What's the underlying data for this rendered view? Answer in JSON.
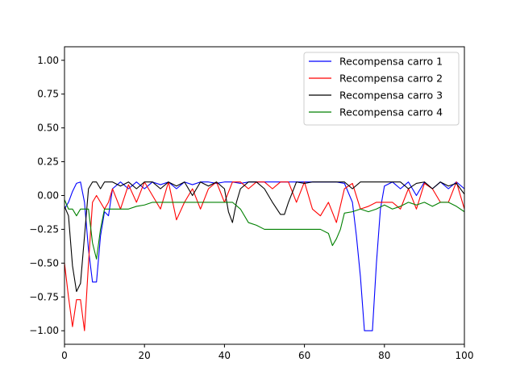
{
  "chart_data": {
    "type": "line",
    "xlim": [
      0,
      100
    ],
    "ylim": [
      -1.1,
      1.1
    ],
    "xticks": [
      0,
      20,
      40,
      60,
      80,
      100
    ],
    "xtick_labels": [
      "0",
      "20",
      "40",
      "60",
      "80",
      "100"
    ],
    "yticks": [
      -1.0,
      -0.75,
      -0.5,
      -0.25,
      0.0,
      0.25,
      0.5,
      0.75,
      1.0
    ],
    "ytick_labels": [
      "−1.00",
      "−0.75",
      "−0.50",
      "−0.25",
      "0.00",
      "0.25",
      "0.50",
      "0.75",
      "1.00"
    ],
    "grid": false,
    "legend_position": "top-right",
    "series": [
      {
        "name": "Recompensa carro 1",
        "color": "#0000ff",
        "x": [
          0,
          1,
          2,
          3,
          4,
          5,
          6,
          7,
          8,
          9,
          10,
          11,
          12,
          14,
          16,
          18,
          20,
          22,
          24,
          26,
          28,
          30,
          32,
          34,
          36,
          38,
          40,
          42,
          44,
          46,
          48,
          50,
          52,
          54,
          56,
          58,
          60,
          62,
          64,
          66,
          68,
          70,
          72,
          73,
          74,
          75,
          76,
          77,
          78,
          79,
          80,
          82,
          84,
          86,
          88,
          90,
          92,
          94,
          96,
          98,
          100
        ],
        "y": [
          -0.1,
          -0.05,
          0.03,
          0.09,
          0.1,
          -0.05,
          -0.4,
          -0.64,
          -0.64,
          -0.3,
          -0.12,
          -0.15,
          0.05,
          0.1,
          0.05,
          0.1,
          0.05,
          0.1,
          0.08,
          0.1,
          0.05,
          0.1,
          0.08,
          0.1,
          0.1,
          0.09,
          0.1,
          0.1,
          0.09,
          0.1,
          0.1,
          0.1,
          0.1,
          0.1,
          0.1,
          0.1,
          0.1,
          0.1,
          0.1,
          0.1,
          0.1,
          0.09,
          -0.05,
          -0.3,
          -0.6,
          -1.0,
          -1.0,
          -1.0,
          -0.5,
          -0.1,
          0.07,
          0.1,
          0.05,
          0.1,
          0.0,
          0.1,
          0.05,
          0.1,
          0.05,
          0.1,
          0.05
        ]
      },
      {
        "name": "Recompensa carro 2",
        "color": "#ff0000",
        "x": [
          0,
          1,
          2,
          3,
          4,
          5,
          6,
          7,
          8,
          9,
          10,
          11,
          12,
          14,
          16,
          18,
          20,
          22,
          24,
          26,
          28,
          30,
          32,
          34,
          36,
          38,
          40,
          42,
          44,
          46,
          48,
          50,
          52,
          54,
          56,
          58,
          60,
          62,
          64,
          66,
          68,
          70,
          72,
          74,
          76,
          78,
          80,
          82,
          84,
          86,
          88,
          90,
          92,
          94,
          96,
          98,
          100
        ],
        "y": [
          -0.5,
          -0.75,
          -0.97,
          -0.77,
          -0.77,
          -1.0,
          -0.5,
          -0.05,
          0.0,
          -0.05,
          -0.1,
          -0.05,
          0.05,
          -0.1,
          0.08,
          -0.05,
          0.1,
          0.0,
          -0.1,
          0.1,
          -0.18,
          -0.05,
          0.05,
          -0.1,
          0.05,
          0.1,
          -0.05,
          0.1,
          0.1,
          0.05,
          0.1,
          0.1,
          0.05,
          0.1,
          0.1,
          -0.05,
          0.1,
          -0.1,
          -0.15,
          -0.05,
          -0.2,
          0.05,
          0.09,
          -0.1,
          -0.08,
          -0.05,
          -0.05,
          -0.05,
          -0.1,
          0.05,
          -0.1,
          0.09,
          0.05,
          -0.05,
          -0.05,
          0.1,
          -0.1
        ]
      },
      {
        "name": "Recompensa carro 3",
        "color": "#000000",
        "x": [
          0,
          1,
          2,
          3,
          4,
          5,
          6,
          7,
          8,
          9,
          10,
          11,
          12,
          14,
          16,
          18,
          20,
          22,
          24,
          26,
          28,
          30,
          32,
          34,
          36,
          38,
          40,
          41,
          42,
          43,
          44,
          46,
          48,
          50,
          52,
          54,
          55,
          56,
          58,
          60,
          62,
          64,
          66,
          68,
          70,
          72,
          74,
          76,
          78,
          80,
          82,
          84,
          86,
          88,
          90,
          92,
          94,
          96,
          98,
          100
        ],
        "y": [
          -0.08,
          -0.15,
          -0.52,
          -0.71,
          -0.65,
          -0.3,
          0.05,
          0.1,
          0.1,
          0.05,
          0.1,
          0.1,
          0.1,
          0.07,
          0.1,
          0.05,
          0.1,
          0.1,
          0.05,
          0.1,
          0.07,
          0.1,
          0.0,
          0.1,
          0.07,
          0.1,
          0.05,
          -0.12,
          -0.2,
          -0.05,
          0.05,
          0.1,
          0.1,
          0.05,
          -0.05,
          -0.14,
          -0.14,
          -0.05,
          0.1,
          0.09,
          0.1,
          0.1,
          0.1,
          0.1,
          0.1,
          0.05,
          0.1,
          0.1,
          0.1,
          0.1,
          0.1,
          0.1,
          0.05,
          0.09,
          0.1,
          0.05,
          0.1,
          0.07,
          0.09,
          0.01
        ]
      },
      {
        "name": "Recompensa carro 4",
        "color": "#008000",
        "x": [
          0,
          1,
          2,
          3,
          4,
          5,
          6,
          7,
          8,
          9,
          10,
          12,
          14,
          16,
          18,
          20,
          22,
          24,
          26,
          28,
          30,
          32,
          34,
          36,
          38,
          40,
          42,
          44,
          46,
          48,
          50,
          52,
          54,
          56,
          58,
          60,
          62,
          64,
          66,
          67,
          68,
          69,
          70,
          72,
          74,
          76,
          78,
          80,
          82,
          84,
          86,
          88,
          90,
          92,
          94,
          96,
          98,
          100
        ],
        "y": [
          -0.03,
          -0.1,
          -0.1,
          -0.15,
          -0.1,
          -0.1,
          -0.1,
          -0.35,
          -0.47,
          -0.25,
          -0.1,
          -0.1,
          -0.1,
          -0.1,
          -0.08,
          -0.07,
          -0.05,
          -0.05,
          -0.05,
          -0.05,
          -0.05,
          -0.05,
          -0.05,
          -0.05,
          -0.05,
          -0.05,
          -0.05,
          -0.1,
          -0.2,
          -0.22,
          -0.25,
          -0.25,
          -0.25,
          -0.25,
          -0.25,
          -0.25,
          -0.25,
          -0.25,
          -0.28,
          -0.37,
          -0.32,
          -0.25,
          -0.13,
          -0.12,
          -0.1,
          -0.12,
          -0.1,
          -0.07,
          -0.1,
          -0.08,
          -0.05,
          -0.07,
          -0.05,
          -0.08,
          -0.05,
          -0.05,
          -0.08,
          -0.12
        ]
      }
    ]
  }
}
